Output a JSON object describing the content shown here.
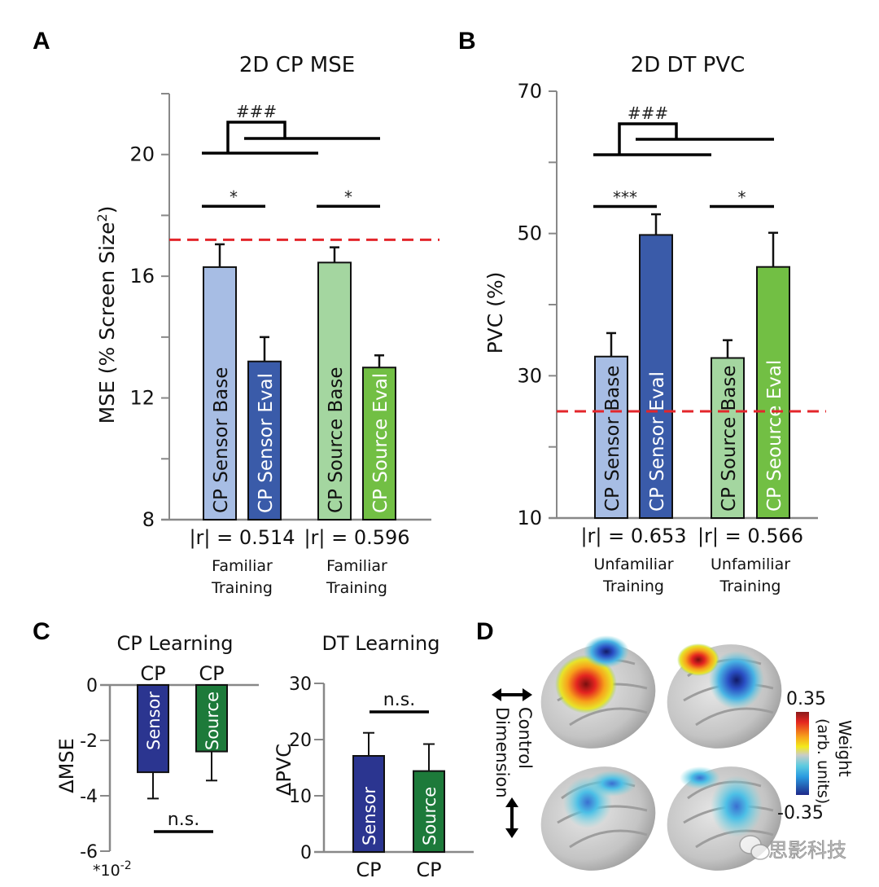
{
  "panels": {
    "A": "A",
    "B": "B",
    "C": "C",
    "D": "D"
  },
  "colors": {
    "sensor_base": "#a7bde4",
    "sensor_eval": "#3a5ba9",
    "source_base": "#a4d6a0",
    "source_eval": "#72bf44",
    "c_sensor": "#2b3590",
    "c_source": "#1d7a3a",
    "chance_line": "#e3262b",
    "axis": "#888888"
  },
  "chart_data": [
    {
      "id": "A",
      "type": "bar",
      "title": "2D CP MSE",
      "ylabel": "MSE (% Screen Size²)",
      "ylabel_main": "MSE (% Screen Size",
      "ylabel_sup": "2",
      "ylabel_close": ")",
      "ylim": [
        8,
        22
      ],
      "yticks": [
        8,
        12,
        16,
        20
      ],
      "yticks_minor": [
        10,
        14,
        18,
        22
      ],
      "categories": [
        "CP Sensor Base",
        "CP Sensor Eval",
        "CP Source Base",
        "CP Source Eval"
      ],
      "values": [
        16.3,
        13.2,
        16.45,
        13.0
      ],
      "errors": [
        0.75,
        0.8,
        0.5,
        0.4
      ],
      "reference_line": 17.2,
      "groups": [
        {
          "r": "|r| = 0.514",
          "label1": "Familiar",
          "label2": "Training"
        },
        {
          "r": "|r| = 0.596",
          "label1": "Familiar",
          "label2": "Training"
        }
      ],
      "significance": [
        {
          "label": "*",
          "from": 0,
          "to": 1,
          "y": 18.3
        },
        {
          "label": "*",
          "from": 2,
          "to": 3,
          "y": 18.3
        },
        {
          "label": "###",
          "type": "group-bracket"
        }
      ]
    },
    {
      "id": "B",
      "type": "bar",
      "title": "2D DT PVC",
      "ylabel": "PVC (%)",
      "ylim": [
        10,
        70
      ],
      "yticks": [
        10,
        30,
        50,
        70
      ],
      "yticks_minor": [
        20,
        40,
        60
      ],
      "categories": [
        "CP Sensor Base",
        "CP Sensor Eval",
        "CP Source Base",
        "CP Seource Eval"
      ],
      "values": [
        32.7,
        49.8,
        32.5,
        45.3
      ],
      "errors": [
        3.3,
        2.9,
        2.5,
        4.8
      ],
      "reference_line": 25,
      "groups": [
        {
          "r": "|r| = 0.653",
          "label1": "Unfamiliar",
          "label2": "Training"
        },
        {
          "r": "|r| = 0.566",
          "label1": "Unfamiliar",
          "label2": "Training"
        }
      ],
      "significance": [
        {
          "label": "***",
          "from": 0,
          "to": 1,
          "y": 53.8
        },
        {
          "label": "*",
          "from": 2,
          "to": 3,
          "y": 53.8
        },
        {
          "label": "###",
          "type": "group-bracket"
        }
      ]
    },
    {
      "id": "C1",
      "type": "bar",
      "title": "CP Learning",
      "ylabel": "ΔMSE",
      "ylim": [
        -6,
        0
      ],
      "yticks": [
        0,
        -2,
        -4,
        -6
      ],
      "yticks_labels": [
        "0",
        "-2",
        "-4",
        "-6"
      ],
      "scale_note_base": "*10",
      "scale_note_exp": "-2",
      "categories": [
        "Sensor",
        "Source"
      ],
      "top_labels": [
        "CP",
        "CP"
      ],
      "values": [
        -3.15,
        -2.4
      ],
      "errors": [
        0.95,
        1.05
      ],
      "significance": [
        {
          "label": "n.s.",
          "from": 0,
          "to": 1
        }
      ]
    },
    {
      "id": "C2",
      "type": "bar",
      "title": "DT Learning",
      "ylabel": "ΔPVC",
      "ylim": [
        0,
        30
      ],
      "yticks": [
        0,
        10,
        20,
        30
      ],
      "categories": [
        "Sensor",
        "Source"
      ],
      "bottom_labels": [
        "CP",
        "CP"
      ],
      "values": [
        17.1,
        14.4
      ],
      "errors": [
        4.1,
        4.8
      ],
      "significance": [
        {
          "label": "n.s.",
          "from": 0,
          "to": 1
        }
      ]
    }
  ],
  "panel_d": {
    "axis_label_line1": "Control",
    "axis_label_line2": "Dimension",
    "colorbar_max": "0.35",
    "colorbar_min": "-0.35",
    "colorbar_title_line1": "Weight",
    "colorbar_title_line2": "(arb. units)",
    "watermark": "思影科技"
  }
}
